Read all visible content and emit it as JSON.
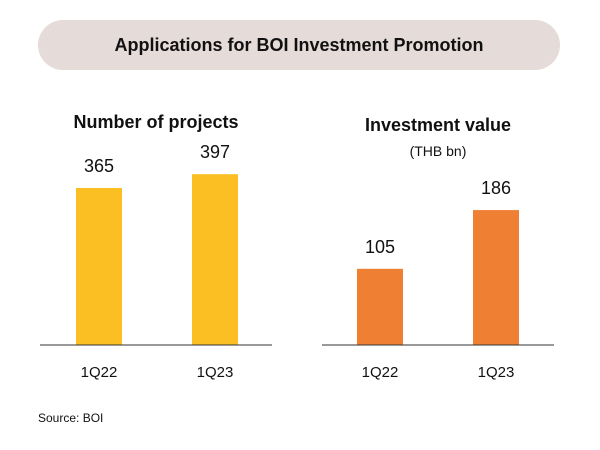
{
  "header": {
    "title": "Applications for BOI Investment Promotion"
  },
  "colors": {
    "banner_bg": "#e5dbd8",
    "axis": "#333333"
  },
  "chart_data": [
    {
      "type": "bar",
      "title": "Number of projects",
      "subtitle": "",
      "categories": [
        "1Q22",
        "1Q23"
      ],
      "values": [
        365,
        397
      ],
      "color": "#fbbf24",
      "ylim": [
        0,
        430
      ],
      "grid": false,
      "legend": "none"
    },
    {
      "type": "bar",
      "title": "Investment value",
      "subtitle": "(THB bn)",
      "categories": [
        "1Q22",
        "1Q23"
      ],
      "values": [
        105,
        186
      ],
      "color": "#ef8033",
      "ylim": [
        0,
        255
      ],
      "grid": false,
      "legend": "none"
    }
  ],
  "footer": {
    "source": "Source: BOI"
  }
}
